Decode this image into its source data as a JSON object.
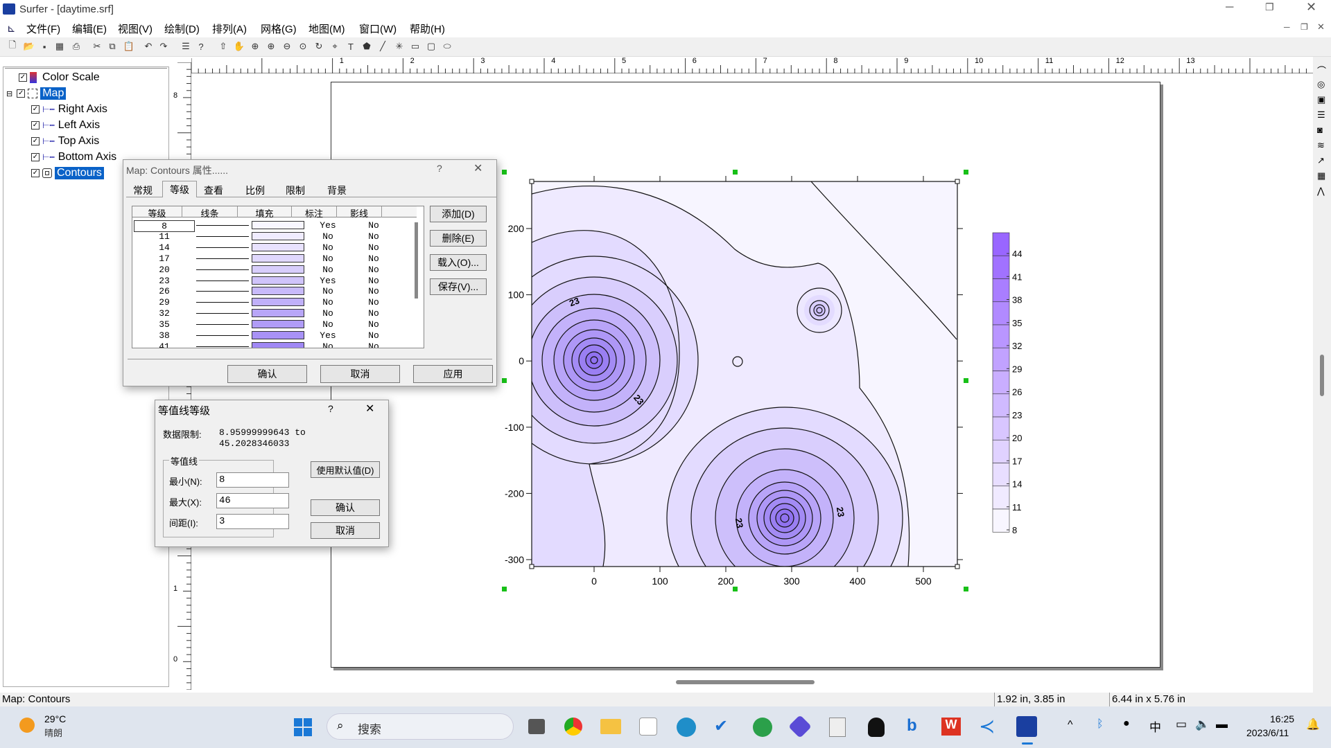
{
  "app": {
    "title": "Surfer - [daytime.srf]"
  },
  "menu": [
    "文件(F)",
    "编辑(E)",
    "视图(V)",
    "绘制(D)",
    "排列(A)",
    "网格(G)",
    "地图(M)",
    "窗口(W)",
    "帮助(H)"
  ],
  "tree": [
    {
      "label": "Color Scale",
      "level": 0,
      "selected": false
    },
    {
      "label": "Map",
      "level": 0,
      "selected": true
    },
    {
      "label": "Right Axis",
      "level": 1,
      "selected": false
    },
    {
      "label": "Left Axis",
      "level": 1,
      "selected": false
    },
    {
      "label": "Top Axis",
      "level": 1,
      "selected": false
    },
    {
      "label": "Bottom Axis",
      "level": 1,
      "selected": false
    },
    {
      "label": "Contours",
      "level": 1,
      "selected": true
    }
  ],
  "ruler": {
    "h_labels": [
      "1",
      "2",
      "3",
      "4",
      "5",
      "6",
      "7",
      "8",
      "9",
      "10",
      "11",
      "12",
      "13"
    ],
    "v_labels": [
      "8",
      "1",
      "0"
    ]
  },
  "props_dialog": {
    "title": "Map: Contours 属性......",
    "help": "?",
    "tabs": [
      "常规",
      "等级",
      "查看",
      "比例",
      "限制",
      "背景"
    ],
    "columns": [
      "等级",
      "线条",
      "填充",
      "标注",
      "影线"
    ],
    "rows": [
      {
        "level": "8",
        "label": "Yes",
        "hatch": "No",
        "fill": "#f8f6ff"
      },
      {
        "level": "11",
        "label": "No",
        "hatch": "No",
        "fill": "#f0ecff"
      },
      {
        "level": "14",
        "label": "No",
        "hatch": "No",
        "fill": "#e8e2fe"
      },
      {
        "level": "17",
        "label": "No",
        "hatch": "No",
        "fill": "#e0d8fd"
      },
      {
        "level": "20",
        "label": "No",
        "hatch": "No",
        "fill": "#d8cefc"
      },
      {
        "level": "23",
        "label": "Yes",
        "hatch": "No",
        "fill": "#d0c4fb"
      },
      {
        "level": "26",
        "label": "No",
        "hatch": "No",
        "fill": "#c8bafa"
      },
      {
        "level": "29",
        "label": "No",
        "hatch": "No",
        "fill": "#c0b0f9"
      },
      {
        "level": "32",
        "label": "No",
        "hatch": "No",
        "fill": "#b8a6f8"
      },
      {
        "level": "35",
        "label": "No",
        "hatch": "No",
        "fill": "#b09cf7"
      },
      {
        "level": "38",
        "label": "Yes",
        "hatch": "No",
        "fill": "#a892f6"
      },
      {
        "level": "41",
        "label": "No",
        "hatch": "No",
        "fill": "#a088f5"
      }
    ],
    "side_buttons": [
      "添加(D)",
      "删除(E)",
      "载入(O)...",
      "保存(V)..."
    ],
    "buttons": [
      "确认",
      "取消",
      "应用"
    ]
  },
  "levels_dialog": {
    "title": "等值线等级",
    "help": "?",
    "data_limit_label": "数据限制:",
    "data_limit_line1": "8.95999999643 to",
    "data_limit_line2": "45.2028346033",
    "group_label": "等值线",
    "min_label": "最小(N):",
    "min_value": "8",
    "max_label": "最大(X):",
    "max_value": "46",
    "interval_label": "间距(I):",
    "interval_value": "3",
    "default_button": "使用默认值(D)",
    "ok": "确认",
    "cancel": "取消"
  },
  "map": {
    "x_ticks": [
      "0",
      "100",
      "200",
      "300",
      "400",
      "500"
    ],
    "y_ticks": [
      "200",
      "100",
      "0",
      "-100",
      "-200",
      "-300"
    ],
    "contour_labels": [
      "23",
      "23",
      "23",
      "23"
    ],
    "colorscale_labels": [
      "44",
      "41",
      "38",
      "35",
      "32",
      "29",
      "26",
      "23",
      "20",
      "17",
      "14",
      "11",
      "8"
    ]
  },
  "status": {
    "left": "Map: Contours",
    "position": "1.92 in, 3.85 in",
    "size": "6.44 in x 5.76 in"
  },
  "taskbar": {
    "temp": "29°C",
    "weather": "晴朗",
    "search": "搜索",
    "ime": "中",
    "time": "16:25",
    "date": "2023/6/11"
  },
  "colors": {
    "accent": "#0a62c8",
    "contour_base": "#ffffff",
    "contour_max": "#9966ff"
  }
}
